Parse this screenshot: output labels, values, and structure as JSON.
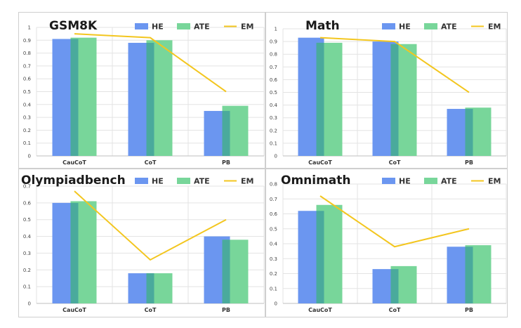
{
  "colors": {
    "HE": "#6b96f0",
    "ATE": "#78d69a",
    "overlap": "#4aaa9c",
    "EM": "#f3c61f",
    "grid": "#e3e3e3",
    "border": "#cfcfcf",
    "axis": "#bfbfbf"
  },
  "chart_data": [
    {
      "type": "bar",
      "title": "GSM8K",
      "categories": [
        "CauCoT",
        "CoT",
        "PB"
      ],
      "ylim": [
        0,
        1
      ],
      "yticks": [
        "0",
        "0.1",
        "0.2",
        "0.3",
        "0.4",
        "0.5",
        "0.6",
        "0.7",
        "0.8",
        "0.9",
        "1"
      ],
      "legend": [
        "HE",
        "ATE",
        "EM"
      ],
      "series": [
        {
          "name": "HE",
          "kind": "bar",
          "values": [
            0.91,
            0.88,
            0.35
          ]
        },
        {
          "name": "ATE",
          "kind": "bar",
          "values": [
            0.92,
            0.9,
            0.39
          ]
        },
        {
          "name": "EM",
          "kind": "line",
          "values": [
            0.95,
            0.92,
            0.5
          ]
        }
      ]
    },
    {
      "type": "bar",
      "title": "Math",
      "categories": [
        "CauCoT",
        "CoT",
        "PB"
      ],
      "ylim": [
        0,
        1
      ],
      "yticks": [
        "0",
        "0.1",
        "0.2",
        "0.3",
        "0.4",
        "0.5",
        "0.6",
        "0.7",
        "0.8",
        "0.9",
        "1"
      ],
      "legend": [
        "HE",
        "ATE",
        "EM"
      ],
      "series": [
        {
          "name": "HE",
          "kind": "bar",
          "values": [
            0.93,
            0.9,
            0.37
          ]
        },
        {
          "name": "ATE",
          "kind": "bar",
          "values": [
            0.89,
            0.88,
            0.38
          ]
        },
        {
          "name": "EM",
          "kind": "line",
          "values": [
            0.93,
            0.9,
            0.5
          ]
        }
      ]
    },
    {
      "type": "bar",
      "title": "Olympiadbench",
      "categories": [
        "CauCoT",
        "CoT",
        "PB"
      ],
      "ylim": [
        0,
        0.7
      ],
      "yticks": [
        "0",
        "0.1",
        "0.2",
        "0.3",
        "0.4",
        "0.5",
        "0.6",
        "0.7"
      ],
      "legend": [
        "HE",
        "ATE",
        "EM"
      ],
      "series": [
        {
          "name": "HE",
          "kind": "bar",
          "values": [
            0.6,
            0.18,
            0.4
          ]
        },
        {
          "name": "ATE",
          "kind": "bar",
          "values": [
            0.61,
            0.18,
            0.38
          ]
        },
        {
          "name": "EM",
          "kind": "line",
          "values": [
            0.67,
            0.26,
            0.5
          ]
        }
      ]
    },
    {
      "type": "bar",
      "title": "Omnimath",
      "categories": [
        "CauCoT",
        "CoT",
        "PB"
      ],
      "ylim": [
        0,
        0.8
      ],
      "yticks": [
        "0",
        "0.1",
        "0.2",
        "0.3",
        "0.4",
        "0.5",
        "0.6",
        "0.7",
        "0.8"
      ],
      "legend": [
        "HE",
        "ATE",
        "EM"
      ],
      "series": [
        {
          "name": "HE",
          "kind": "bar",
          "values": [
            0.62,
            0.23,
            0.38
          ]
        },
        {
          "name": "ATE",
          "kind": "bar",
          "values": [
            0.66,
            0.25,
            0.39
          ]
        },
        {
          "name": "EM",
          "kind": "line",
          "values": [
            0.72,
            0.38,
            0.5
          ]
        }
      ]
    }
  ]
}
